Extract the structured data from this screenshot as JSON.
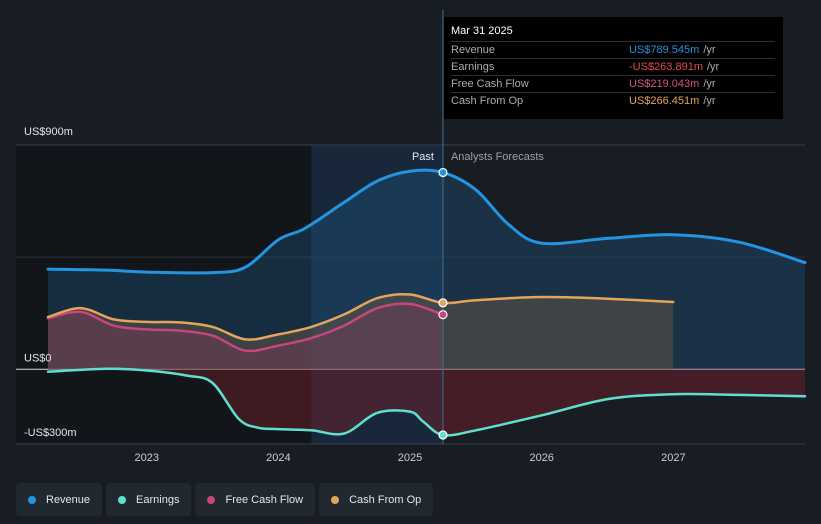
{
  "tooltip": {
    "date": "Mar 31 2025",
    "rows": [
      {
        "label": "Revenue",
        "value": "US$789.545m",
        "unit": "/yr",
        "color": "#2394df"
      },
      {
        "label": "Earnings",
        "value": "-US$263.891m",
        "unit": "/yr",
        "color": "#e64b4b"
      },
      {
        "label": "Free Cash Flow",
        "value": "US$219.043m",
        "unit": "/yr",
        "color": "#d4558b"
      },
      {
        "label": "Cash From Op",
        "value": "US$266.451m",
        "unit": "/yr",
        "color": "#e5a45b"
      }
    ]
  },
  "labels": {
    "past": "Past",
    "forecast": "Analysts Forecasts"
  },
  "legend": [
    {
      "label": "Revenue",
      "color": "#2394df"
    },
    {
      "label": "Earnings",
      "color": "#5fe0cf"
    },
    {
      "label": "Free Cash Flow",
      "color": "#c9467c"
    },
    {
      "label": "Cash From Op",
      "color": "#e5a45b"
    }
  ],
  "chart_data": {
    "type": "line",
    "y_tick_labels": [
      "US$900m",
      "US$0",
      "-US$300m"
    ],
    "y_ticks": [
      900,
      0,
      -300
    ],
    "ylim": [
      -300,
      900
    ],
    "xlim": [
      2022.25,
      2028.0
    ],
    "x_tick_labels": [
      "2023",
      "2024",
      "2025",
      "2026",
      "2027"
    ],
    "x_ticks": [
      2023,
      2024,
      2025,
      2026,
      2027
    ],
    "past_end": 2025.25,
    "highlight_start": 2024.25,
    "grid": true,
    "series": [
      {
        "name": "Revenue",
        "color": "#2394df",
        "x": [
          2022.25,
          2022.7,
          2023.0,
          2023.5,
          2023.75,
          2024.0,
          2024.2,
          2024.5,
          2024.75,
          2025.0,
          2025.25,
          2025.5,
          2025.75,
          2026.0,
          2026.5,
          2027.0,
          2027.5,
          2028.0
        ],
        "y": [
          402,
          398,
          390,
          388,
          410,
          520,
          565,
          670,
          755,
          795,
          789.545,
          720,
          580,
          506,
          525,
          540,
          510,
          428
        ]
      },
      {
        "name": "Earnings",
        "color": "#5fe0cf",
        "x": [
          2022.25,
          2022.7,
          2023.0,
          2023.3,
          2023.5,
          2023.7,
          2023.85,
          2024.0,
          2024.25,
          2024.5,
          2024.75,
          2025.0,
          2025.1,
          2025.25,
          2025.5,
          2026.0,
          2026.5,
          2027.0,
          2027.5,
          2028.0
        ],
        "y": [
          -10,
          2,
          -5,
          -25,
          -55,
          -200,
          -235,
          -240,
          -245,
          -258,
          -175,
          -170,
          -210,
          -263.891,
          -245,
          -185,
          -120,
          -100,
          -103,
          -108
        ]
      },
      {
        "name": "Free Cash Flow",
        "color": "#c9467c",
        "x": [
          2022.25,
          2022.5,
          2022.75,
          2023.0,
          2023.25,
          2023.5,
          2023.75,
          2024.0,
          2024.25,
          2024.5,
          2024.75,
          2025.0,
          2025.25
        ],
        "y": [
          205,
          230,
          175,
          160,
          155,
          135,
          75,
          95,
          125,
          175,
          245,
          262,
          219.043
        ]
      },
      {
        "name": "Cash From Op",
        "color": "#e5a45b",
        "x": [
          2022.25,
          2022.5,
          2022.75,
          2023.0,
          2023.25,
          2023.5,
          2023.75,
          2024.0,
          2024.25,
          2024.5,
          2024.75,
          2025.0,
          2025.25,
          2025.5,
          2026.0,
          2026.5,
          2027.0
        ],
        "y": [
          210,
          245,
          200,
          190,
          188,
          170,
          120,
          140,
          170,
          220,
          285,
          300,
          266.451,
          277,
          290,
          283,
          270
        ]
      }
    ],
    "markers": [
      {
        "series": "Revenue",
        "x": 2025.25,
        "y": 789.545
      },
      {
        "series": "Earnings",
        "x": 2025.25,
        "y": -263.891
      },
      {
        "series": "Free Cash Flow",
        "x": 2025.25,
        "y": 219.043
      },
      {
        "series": "Cash From Op",
        "x": 2025.25,
        "y": 266.451
      }
    ]
  }
}
